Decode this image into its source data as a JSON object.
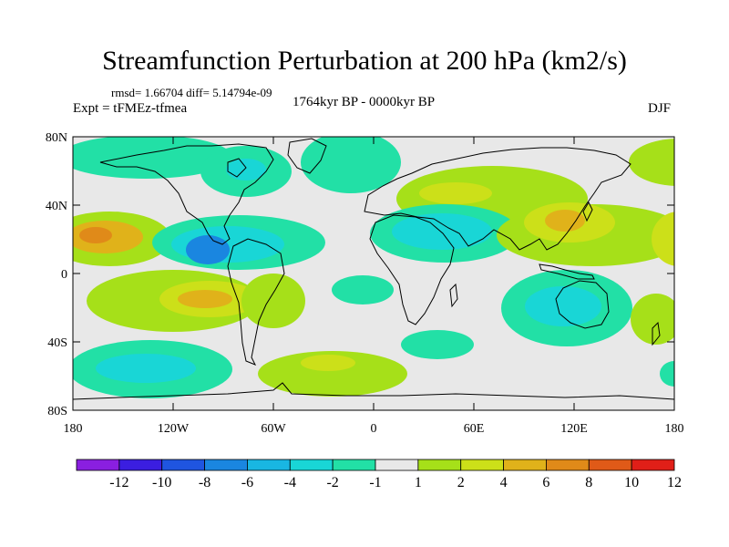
{
  "title": "Streamfunction Perturbation at 200 hPa (km2/s)",
  "stats_line": "rmsd= 1.66704 diff= 5.14794e-09",
  "experiment": "Expt = tFMEz-tfmea",
  "period": "1764kyr BP - 0000kyr BP",
  "season": "DJF",
  "lat_ticks": [
    "80N",
    "40N",
    "0",
    "40S",
    "80S"
  ],
  "lon_ticks": [
    "180",
    "120W",
    "60W",
    "0",
    "60E",
    "120E",
    "180"
  ],
  "colorbar": {
    "labels": [
      "-12",
      "-10",
      "-8",
      "-6",
      "-4",
      "-2",
      "-1",
      "1",
      "2",
      "4",
      "6",
      "8",
      "10",
      "12"
    ],
    "colors": [
      "#8a1fe0",
      "#3b1ee0",
      "#1f55e0",
      "#1a86e0",
      "#19b6e2",
      "#19d6d6",
      "#22e0a6",
      "#e8e8e8",
      "#a6e019",
      "#cce019",
      "#e0b21a",
      "#e08a19",
      "#e05a18",
      "#e01f18"
    ]
  }
}
